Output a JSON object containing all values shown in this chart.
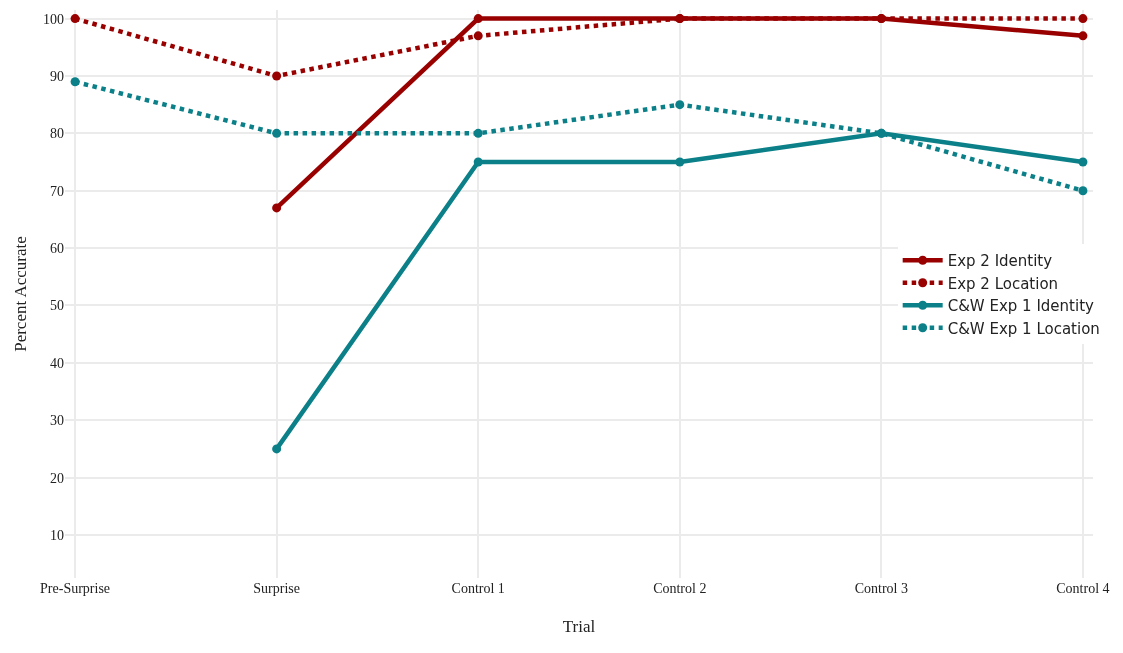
{
  "chart_data": {
    "type": "line",
    "xlabel": "Trial",
    "ylabel": "Percent Accurate",
    "categories": [
      "Pre-Surprise",
      "Surprise",
      "Control 1",
      "Control 2",
      "Control 3",
      "Control 4"
    ],
    "series": [
      {
        "name": "Exp 2 Identity",
        "color": "#990000",
        "line_style": "solid",
        "values": [
          null,
          67,
          100,
          100,
          100,
          97
        ]
      },
      {
        "name": "Exp 2 Location",
        "color": "#990000",
        "line_style": "dotted",
        "values": [
          100,
          90,
          97,
          100,
          100,
          100
        ]
      },
      {
        "name": "C&W Exp 1 Identity",
        "color": "#0b8088",
        "line_style": "solid",
        "values": [
          null,
          25,
          75,
          75,
          80,
          75
        ]
      },
      {
        "name": "C&W Exp 1 Location",
        "color": "#0b8088",
        "line_style": "dotted",
        "values": [
          89,
          80,
          80,
          85,
          80,
          70
        ]
      }
    ],
    "ylim": [
      2.5,
      101.5
    ],
    "yticks": [
      10,
      20,
      30,
      40,
      50,
      60,
      70,
      80,
      90,
      100
    ],
    "grid": true,
    "legend": "right",
    "marker": "circle"
  }
}
